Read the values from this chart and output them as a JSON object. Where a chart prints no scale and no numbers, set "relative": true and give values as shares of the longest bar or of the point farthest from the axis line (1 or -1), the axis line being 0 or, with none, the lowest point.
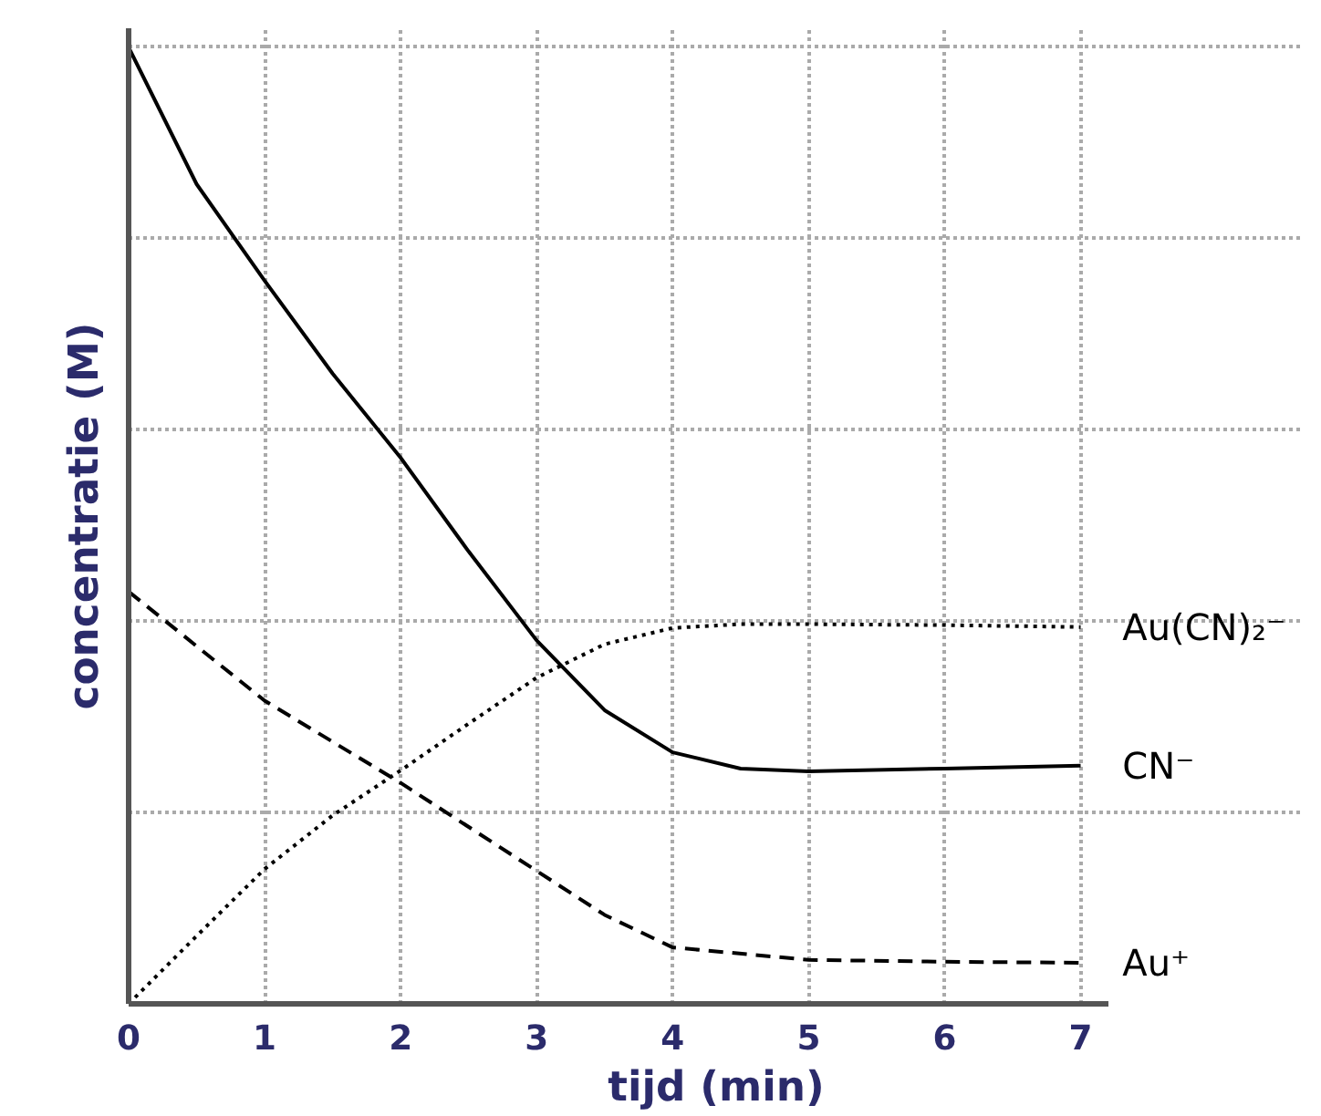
{
  "chart_data": {
    "type": "line",
    "relative": true,
    "xlabel": "tijd (min)",
    "ylabel": "concentratie (M)",
    "xlim": [
      0,
      7.2
    ],
    "xticks": [
      0,
      1,
      2,
      3,
      4,
      5,
      6,
      7
    ],
    "grid": true,
    "marker": "none",
    "series": [
      {
        "name": "Au(CN)₂⁻",
        "color": "#000000",
        "line_style": "dotted",
        "x": [
          0,
          0.5,
          1,
          1.5,
          2,
          2.5,
          3,
          3.5,
          4,
          4.5,
          5,
          6,
          7
        ],
        "values": [
          0,
          0.071,
          0.141,
          0.197,
          0.244,
          0.293,
          0.341,
          0.376,
          0.393,
          0.397,
          0.397,
          0.396,
          0.394
        ]
      },
      {
        "name": "CN⁻",
        "color": "#000000",
        "line_style": "solid",
        "x": [
          0,
          0.5,
          1,
          1.5,
          2,
          2.5,
          3,
          3.5,
          4,
          4.5,
          5,
          6,
          7
        ],
        "values": [
          1,
          0.857,
          0.756,
          0.659,
          0.571,
          0.473,
          0.38,
          0.307,
          0.263,
          0.246,
          0.243,
          0.246,
          0.249
        ]
      },
      {
        "name": "Au⁺",
        "color": "#000000",
        "line_style": "dashed",
        "x": [
          0,
          1,
          2,
          3,
          3.5,
          4,
          5,
          6,
          7
        ],
        "values": [
          0.431,
          0.317,
          0.231,
          0.139,
          0.093,
          0.059,
          0.046,
          0.044,
          0.043
        ]
      }
    ]
  }
}
